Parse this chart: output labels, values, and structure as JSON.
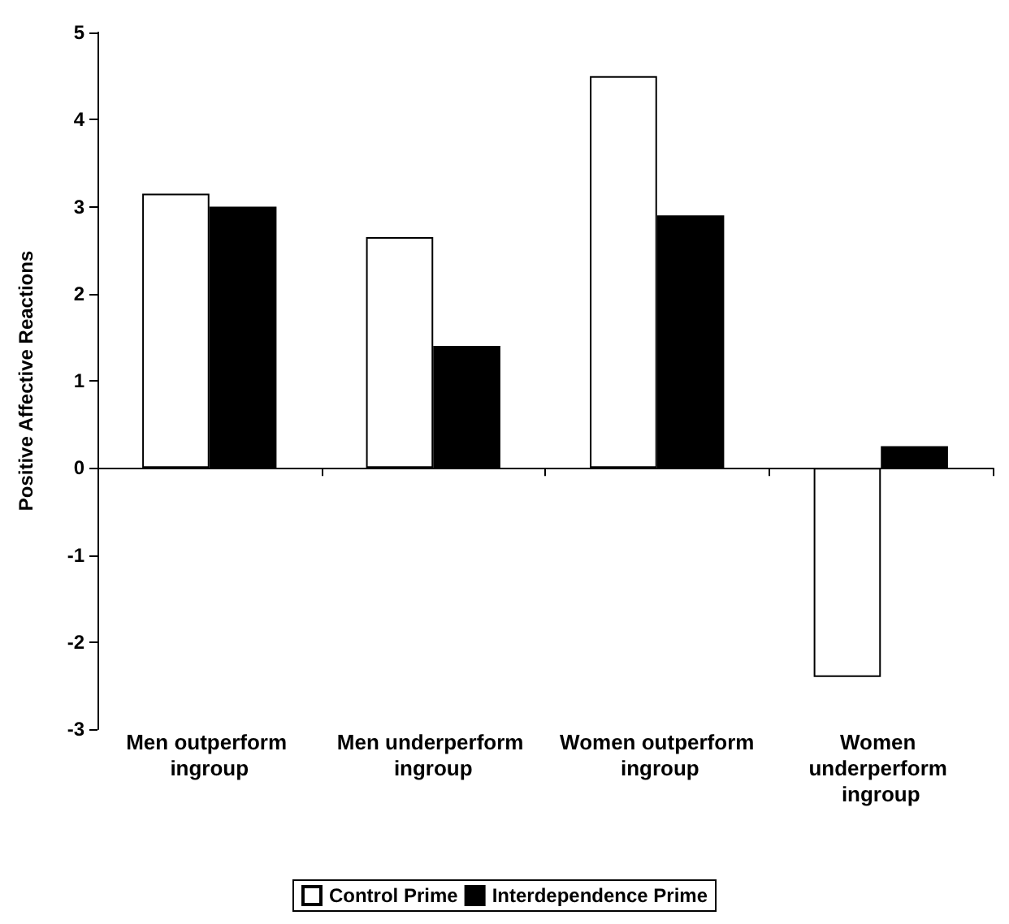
{
  "chart_data": {
    "type": "bar",
    "ylabel": "Positive Affective Reactions",
    "categories": [
      "Men outperform ingroup",
      "Men underperform ingroup",
      "Women outperform ingroup",
      "Women underperform ingroup"
    ],
    "series": [
      {
        "name": "Control Prime",
        "color": "#ffffff",
        "values": [
          3.15,
          2.65,
          4.5,
          -2.4
        ]
      },
      {
        "name": "Interdependence Prime",
        "color": "#000000",
        "values": [
          3.0,
          1.4,
          2.9,
          0.25
        ]
      }
    ],
    "ylim": [
      -3,
      5
    ],
    "yticks": [
      -3,
      -2,
      -1,
      0,
      1,
      2,
      3,
      4,
      5
    ],
    "legend": "bottom"
  }
}
